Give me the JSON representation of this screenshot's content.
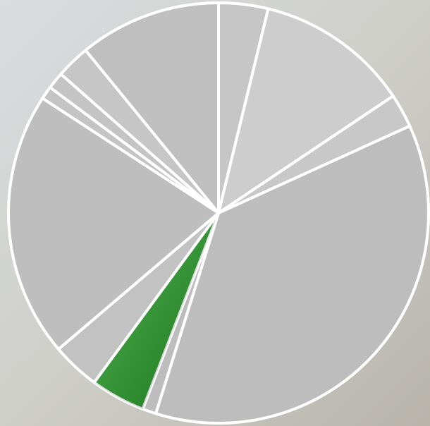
{
  "chart_data": {
    "type": "pie",
    "values": [
      3.8,
      11.8,
      2.6,
      36.6,
      1.05,
      4.2,
      3.7,
      20.4,
      1.0,
      1.3,
      2.6,
      10.9
    ],
    "colors": [
      "#c6c6c6",
      "#cdcdcd",
      "#c8c8c8",
      "#bdbdbd",
      "#bdbdbd",
      "#1f9a1f",
      "#c2c2c2",
      "#bebebe",
      "#c4c4c4",
      "#c4c4c4",
      "#c6c6c6",
      "#bfbfbf"
    ]
  }
}
